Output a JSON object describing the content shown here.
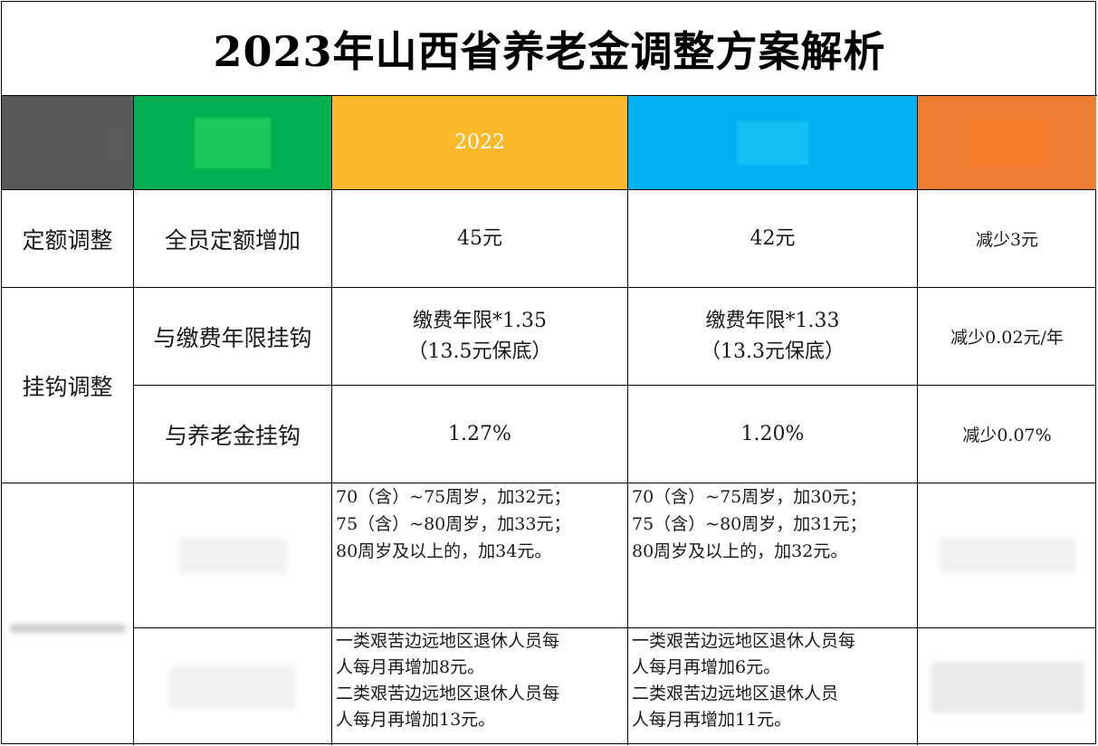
{
  "title": "2023年山西省养老金调整方案解析",
  "header": {
    "col_2022": "2022"
  },
  "rows": {
    "fixed": {
      "category": "定额调整",
      "item": "全员定额增加",
      "v2022": "45元",
      "v2023": "42元",
      "diff": "减少3元"
    },
    "years": {
      "category": "挂钩调整",
      "item": "与缴费年限挂钩",
      "v2022_line1": "缴费年限*1.35",
      "v2022_line2": "（13.5元保底）",
      "v2023_line1": "缴费年限*1.33",
      "v2023_line2": "（13.3元保底）",
      "diff": "减少0.02元/年"
    },
    "pension": {
      "item": "与养老金挂钩",
      "v2022": "1.27%",
      "v2023": "1.20%",
      "diff": "减少0.07%"
    },
    "age": {
      "v2022": [
        "70（含）~75周岁，加32元；",
        "75（含）~80周岁，加33元；",
        "80周岁及以上的，加34元。"
      ],
      "v2023": [
        "70（含）~75周岁，加30元；",
        "75（含）~80周岁，加31元；",
        "80周岁及以上的，加32元。"
      ]
    },
    "remote": {
      "v2022": [
        "一类艰苦边远地区退休人员每",
        "人每月再增加8元。",
        "二类艰苦边远地区退休人员每",
        "人每月再增加13元。"
      ],
      "v2023": [
        "一类艰苦边远地区退休人员每",
        "人每月再增加6元。",
        "二类艰苦边远地区退休人员",
        "人每月再增加11元。"
      ]
    }
  }
}
